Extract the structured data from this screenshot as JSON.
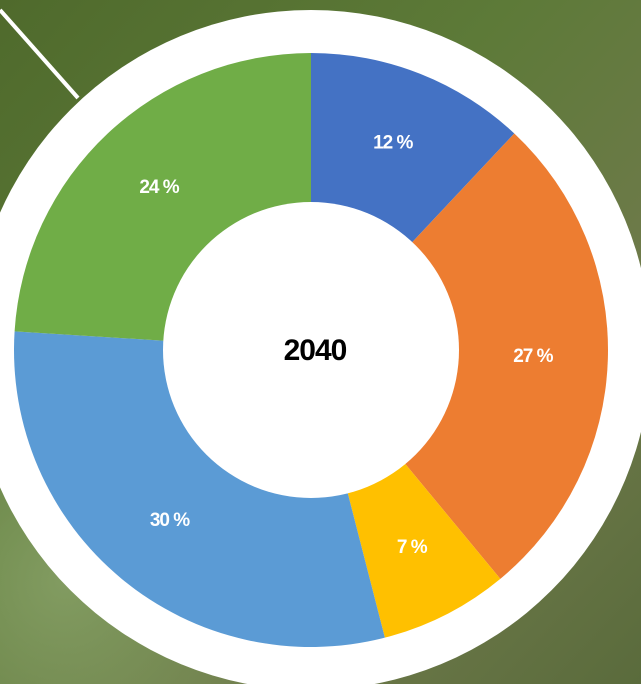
{
  "chart_data": {
    "type": "donut",
    "title": "2040",
    "categories": [
      null,
      null,
      null,
      null,
      null
    ],
    "values": [
      12,
      27,
      7,
      30,
      24
    ],
    "value_labels": [
      "12 %",
      "27 %",
      "7 %",
      "30 %",
      "24 %"
    ],
    "colors": [
      "#4472c4",
      "#ed7d31",
      "#ffc000",
      "#5b9bd5",
      "#70ad47"
    ]
  }
}
